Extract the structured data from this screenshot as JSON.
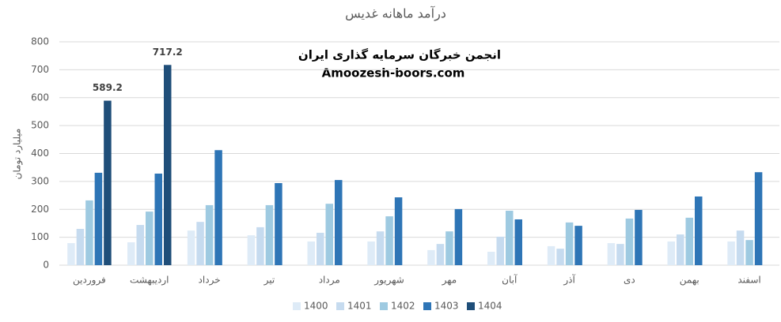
{
  "chart_data": {
    "type": "bar",
    "title": "درآمد ماهانه غدیس",
    "y_label": "میلیارد تومان",
    "annotations": [
      "انجمن خبرگان سرمایه گذاری ایران",
      "Amoozesh-boors.com"
    ],
    "categories": [
      "فروردین",
      "اردیبهشت",
      "خرداد",
      "تیر",
      "مرداد",
      "شهریور",
      "مهر",
      "آبان",
      "آذر",
      "دی",
      "بهمن",
      "اسفند"
    ],
    "series": [
      {
        "name": "1400",
        "color": "#deebf7",
        "values": [
          79,
          82,
          124,
          107,
          85,
          85,
          54,
          48,
          68,
          79,
          85,
          85
        ]
      },
      {
        "name": "1401",
        "color": "#c6dbef",
        "values": [
          130,
          144,
          155,
          136,
          116,
          121,
          76,
          102,
          59,
          76,
          110,
          124
        ]
      },
      {
        "name": "1402",
        "color": "#9ecae1",
        "values": [
          232,
          192,
          215,
          215,
          220,
          175,
          121,
          195,
          153,
          167,
          170,
          90
        ]
      },
      {
        "name": "1403",
        "color": "#2e75b6",
        "values": [
          331,
          328,
          412,
          294,
          305,
          243,
          201,
          164,
          141,
          198,
          246,
          333
        ]
      },
      {
        "name": "1404",
        "color": "#1f4e79",
        "values": [
          589.2,
          717.2,
          null,
          null,
          null,
          null,
          null,
          null,
          null,
          null,
          null,
          null
        ],
        "data_labels": true
      }
    ],
    "ylim": [
      0,
      800
    ],
    "yticks": [
      0,
      100,
      200,
      300,
      400,
      500,
      600,
      700,
      800
    ],
    "grid": true,
    "legend": "bottom"
  }
}
